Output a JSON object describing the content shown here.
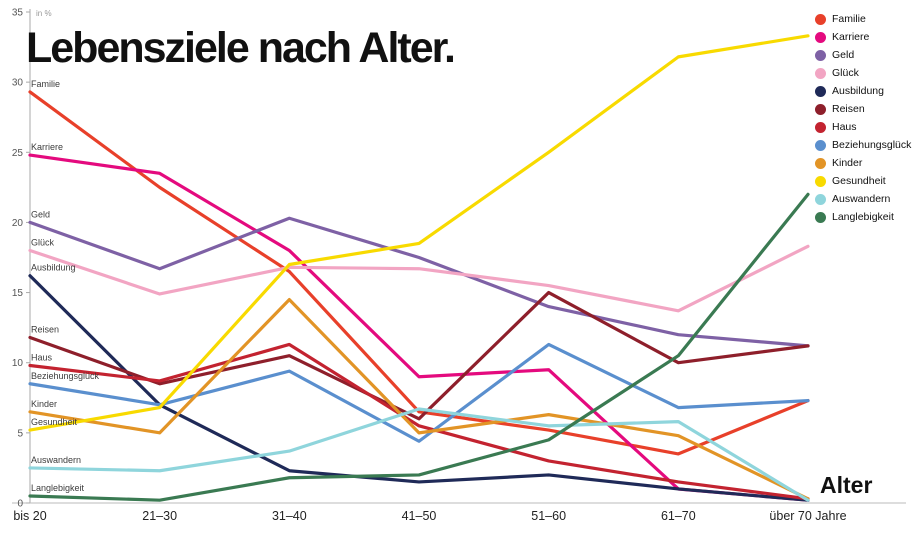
{
  "chart_data": {
    "type": "line",
    "title": "Lebensziele nach Alter.",
    "ylabel": "in %",
    "xlabel": "Alter",
    "ylim": [
      0,
      35
    ],
    "yticks": [
      0,
      5,
      10,
      15,
      20,
      25,
      30,
      35
    ],
    "categories": [
      "bis 20",
      "21–30",
      "31–40",
      "41–50",
      "51–60",
      "61–70",
      "über 70 Jahre"
    ],
    "grid": false,
    "legend_position": "top-right",
    "series": [
      {
        "name": "Familie",
        "color": "#e8402a",
        "values": [
          29.3,
          22.5,
          16.5,
          6.5,
          5.2,
          3.5,
          7.3
        ]
      },
      {
        "name": "Karriere",
        "color": "#e40a7e",
        "values": [
          24.8,
          23.5,
          18.0,
          9.0,
          9.5,
          1.0,
          0.2
        ]
      },
      {
        "name": "Geld",
        "color": "#7e61a5",
        "values": [
          20.0,
          16.7,
          20.3,
          17.5,
          14.0,
          12.0,
          11.2
        ]
      },
      {
        "name": "Glück",
        "color": "#f2a5c3",
        "values": [
          18.0,
          14.9,
          16.8,
          16.7,
          15.5,
          13.7,
          18.3
        ]
      },
      {
        "name": "Ausbildung",
        "color": "#1f2a58",
        "values": [
          16.2,
          7.0,
          2.3,
          1.5,
          2.0,
          1.0,
          0.2
        ]
      },
      {
        "name": "Reisen",
        "color": "#8e1f2b",
        "values": [
          11.8,
          8.5,
          10.5,
          6.0,
          15.0,
          10.0,
          11.2
        ]
      },
      {
        "name": "Haus",
        "color": "#c32330",
        "values": [
          9.8,
          8.7,
          11.3,
          5.5,
          3.0,
          1.5,
          0.3
        ]
      },
      {
        "name": "Beziehungsglück",
        "color": "#5a8fce",
        "values": [
          8.5,
          7.0,
          9.4,
          4.4,
          11.3,
          6.8,
          7.3
        ]
      },
      {
        "name": "Kinder",
        "color": "#e29426",
        "values": [
          6.5,
          5.0,
          14.5,
          5.0,
          6.3,
          4.8,
          0.3
        ]
      },
      {
        "name": "Gesundheit",
        "color": "#f8da00",
        "values": [
          5.2,
          6.8,
          17.0,
          18.5,
          25.0,
          31.8,
          33.3
        ]
      },
      {
        "name": "Auswandern",
        "color": "#8fd5dc",
        "values": [
          2.5,
          2.3,
          3.7,
          6.7,
          5.5,
          5.8,
          0.2
        ]
      },
      {
        "name": "Langlebigkeit",
        "color": "#3a7a52",
        "values": [
          0.5,
          0.2,
          1.8,
          2.0,
          4.5,
          10.5,
          22.0
        ]
      }
    ]
  }
}
